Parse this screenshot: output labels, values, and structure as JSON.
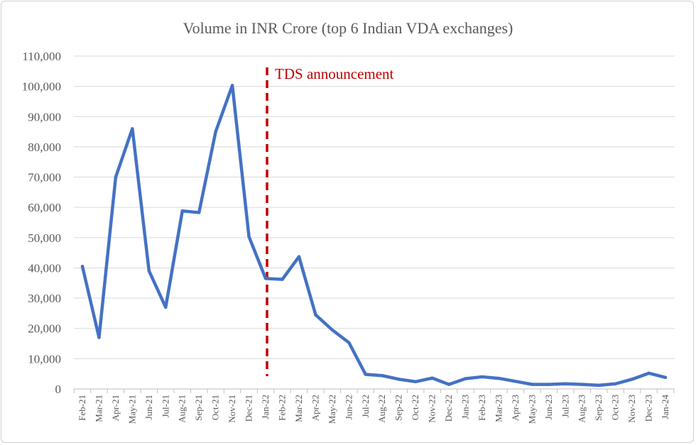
{
  "chart_data": {
    "type": "line",
    "title": "Volume in INR Crore (top 6 Indian VDA exchanges)",
    "xlabel": "",
    "ylabel": "",
    "ylim": [
      0,
      110000
    ],
    "yticks": [
      "0",
      "10,000",
      "20,000",
      "30,000",
      "40,000",
      "50,000",
      "60,000",
      "70,000",
      "80,000",
      "90,000",
      "100,000",
      "110,000"
    ],
    "grid": true,
    "categories": [
      "Feb-21",
      "Mar-21",
      "Apr-21",
      "May-21",
      "Jun-21",
      "Jul-21",
      "Aug-21",
      "Sep-21",
      "Oct-21",
      "Nov-21",
      "Dec-21",
      "Jan-22",
      "Feb-22",
      "Mar-22",
      "Apr-22",
      "May-22",
      "Jun-22",
      "Jul-22",
      "Aug-22",
      "Sep-22",
      "Oct-22",
      "Nov-22",
      "Dec-22",
      "Jan-23",
      "Feb-23",
      "Mar-23",
      "Apr-23",
      "May-23",
      "Jun-23",
      "Jul-23",
      "Aug-23",
      "Sep-23",
      "Oct-23",
      "Nov-23",
      "Dec-23",
      "Jan-24"
    ],
    "values": [
      40500,
      17000,
      70000,
      86000,
      39000,
      27000,
      58800,
      58300,
      85000,
      100300,
      50300,
      36500,
      36200,
      43700,
      24500,
      19500,
      15300,
      4800,
      4400,
      3200,
      2400,
      3600,
      1500,
      3400,
      4000,
      3500,
      2500,
      1500,
      1500,
      1700,
      1500,
      1200,
      1700,
      3200,
      5200,
      3800
    ],
    "line_color": "#4472C4",
    "annotation": {
      "label": "TDS announcement",
      "at": "Jan-22",
      "color": "#C00000"
    }
  }
}
